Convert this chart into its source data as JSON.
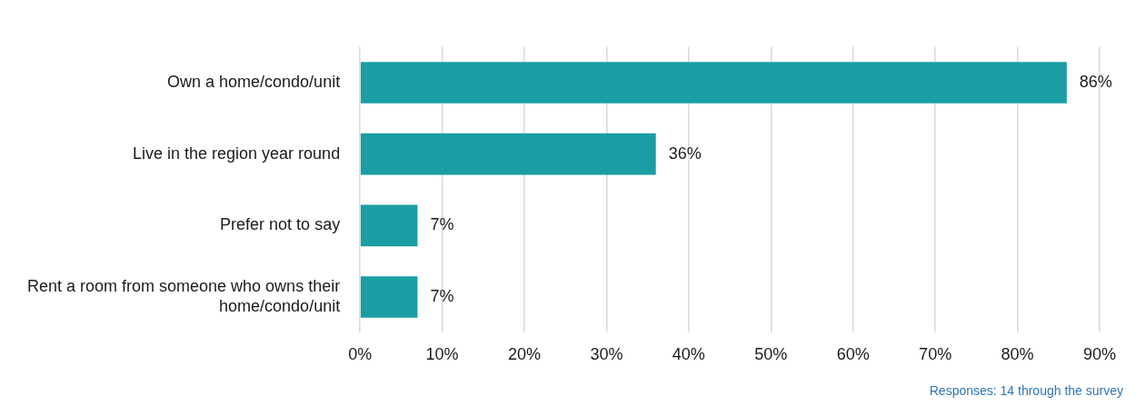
{
  "chart_data": {
    "type": "bar",
    "orientation": "horizontal",
    "categories": [
      "Own a home/condo/unit",
      "Live in the region year round",
      "Prefer not to say",
      "Rent a room from someone who owns their home/condo/unit"
    ],
    "values": [
      86,
      36,
      7,
      7
    ],
    "color": "#1a9ea3",
    "value_labels": [
      "86%",
      "36%",
      "7%",
      "7%"
    ],
    "xlim": [
      0,
      90
    ],
    "xticks": [
      {
        "value": 0,
        "label": "0%"
      },
      {
        "value": 10,
        "label": "10%"
      },
      {
        "value": 20,
        "label": "20%"
      },
      {
        "value": 30,
        "label": "30%"
      },
      {
        "value": 40,
        "label": "40%"
      },
      {
        "value": 50,
        "label": "50%"
      },
      {
        "value": 60,
        "label": "60%"
      },
      {
        "value": 70,
        "label": "70%"
      },
      {
        "value": 80,
        "label": "80%"
      },
      {
        "value": 90,
        "label": "90%"
      }
    ],
    "grid": "x",
    "legend": false,
    "annotations": [
      "Responses: 14 through the survey"
    ]
  }
}
